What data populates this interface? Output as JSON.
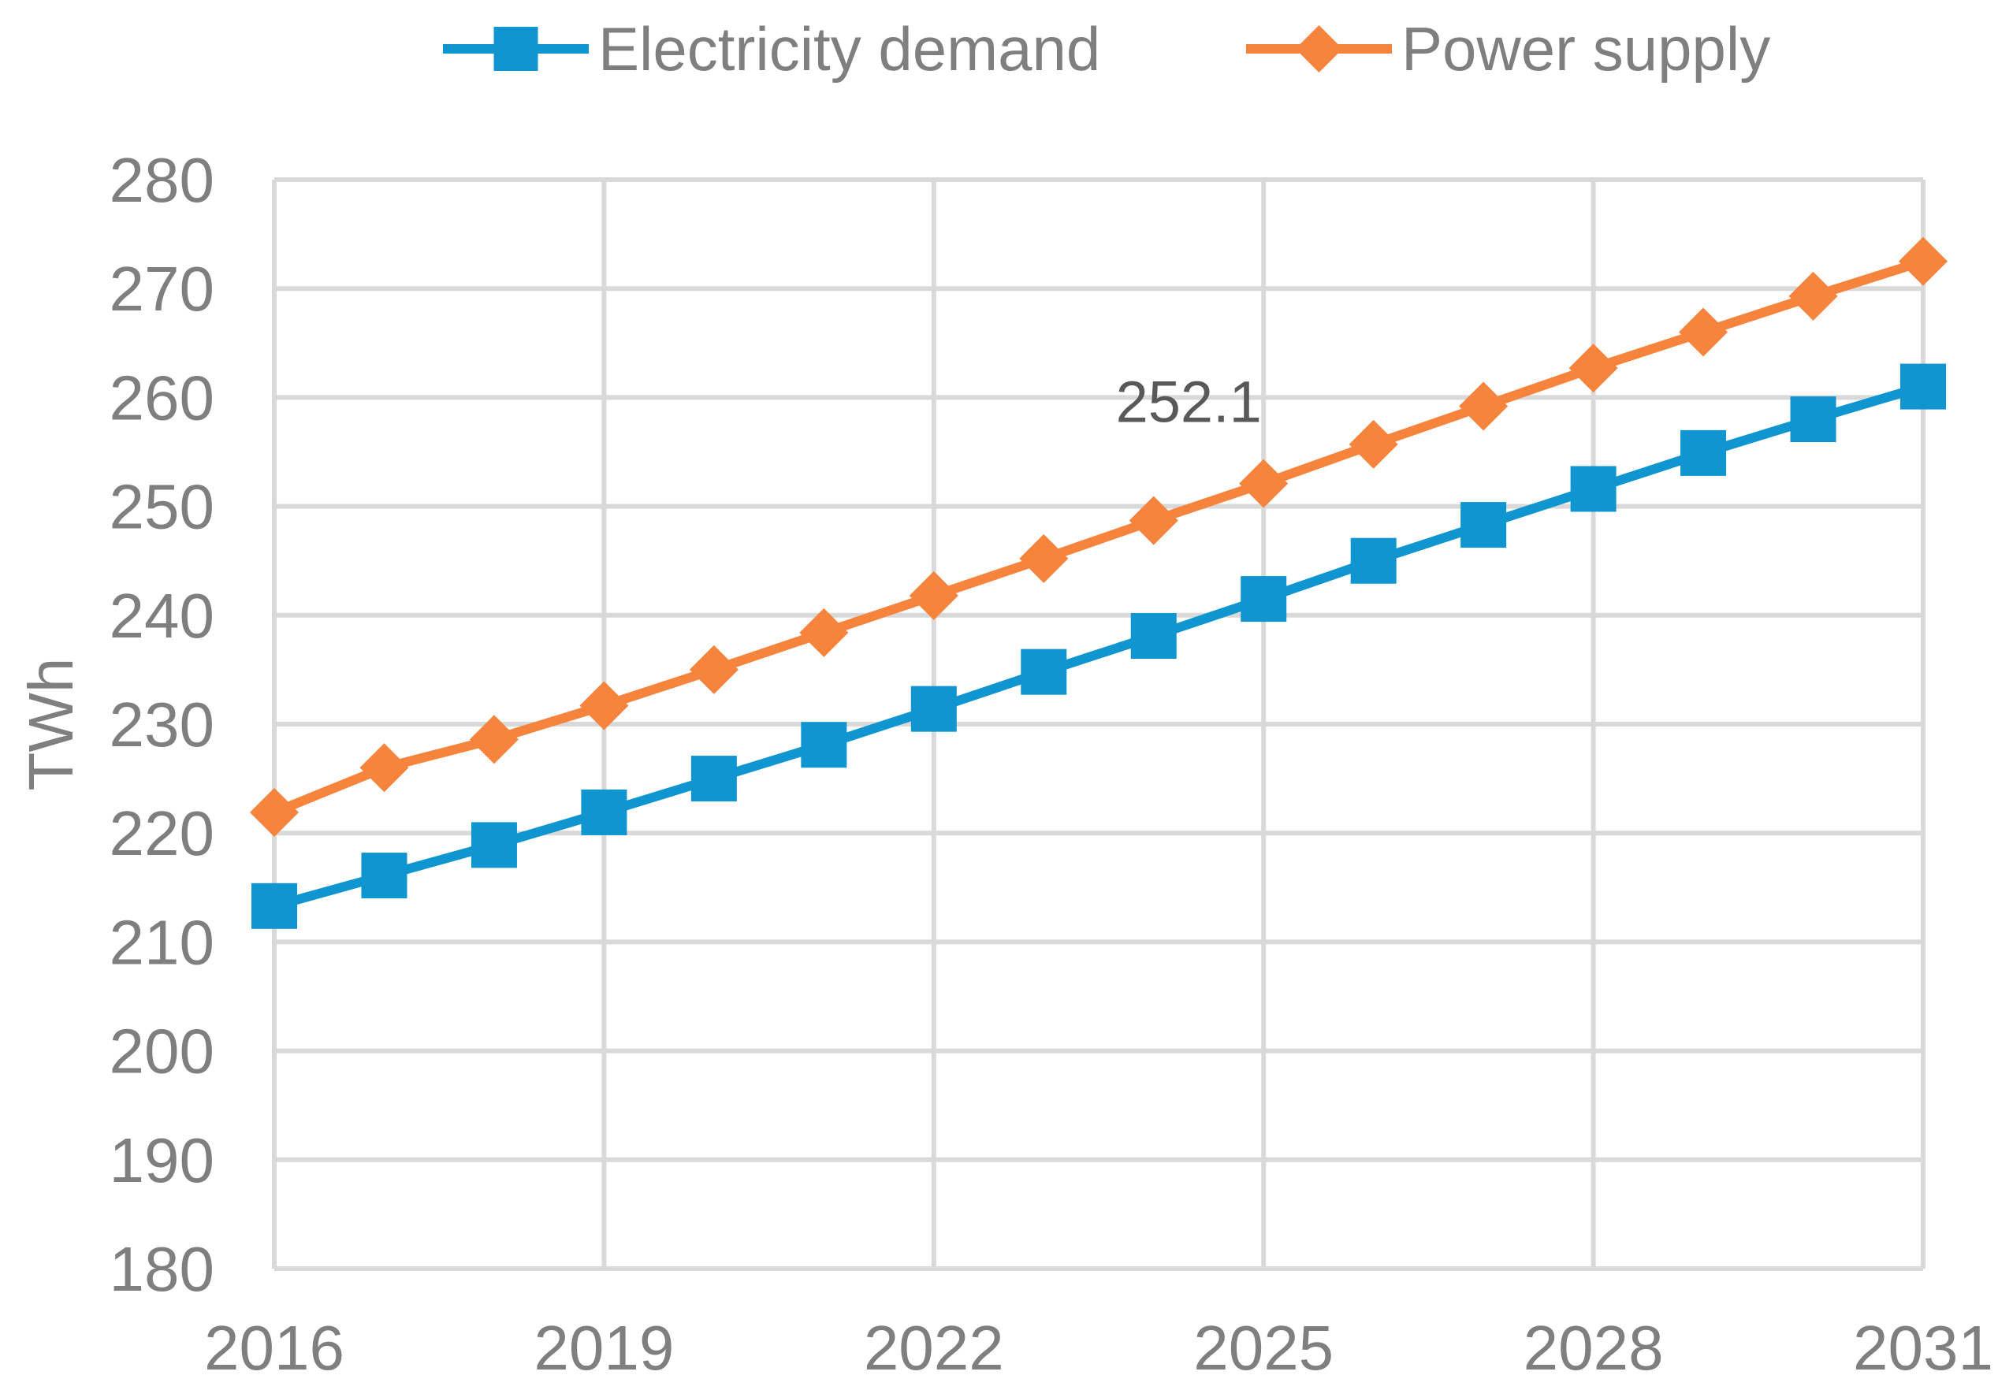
{
  "chart_data": {
    "type": "line",
    "title": "",
    "xlabel": "",
    "ylabel": "TWh",
    "x": [
      2016,
      2017,
      2018,
      2019,
      2020,
      2021,
      2022,
      2023,
      2024,
      2025,
      2026,
      2027,
      2028,
      2029,
      2030,
      2031
    ],
    "x_tick_labels": [
      "2016",
      "2019",
      "2022",
      "2025",
      "2028",
      "2031"
    ],
    "x_range": [
      2016,
      2031
    ],
    "ylim": [
      180,
      280
    ],
    "y_ticks": [
      180,
      190,
      200,
      210,
      220,
      230,
      240,
      250,
      260,
      270,
      280
    ],
    "grid": true,
    "legend_position": "top",
    "series": [
      {
        "name": "Electricity demand",
        "color": "#0f95cf",
        "marker": "square",
        "values": [
          213.3,
          216.1,
          218.9,
          221.9,
          225.0,
          228.1,
          231.4,
          234.8,
          238.1,
          241.5,
          245.0,
          248.3,
          251.6,
          254.9,
          258.0,
          261.0
        ]
      },
      {
        "name": "Power supply",
        "color": "#f7843d",
        "marker": "diamond",
        "values": [
          221.9,
          226.0,
          228.6,
          231.7,
          235.0,
          238.4,
          241.8,
          245.2,
          248.7,
          252.1,
          255.7,
          259.2,
          262.7,
          266.0,
          269.3,
          272.5
        ]
      }
    ],
    "annotations": [
      {
        "text": "252.1",
        "series": "Power supply",
        "x": 2025
      }
    ]
  }
}
